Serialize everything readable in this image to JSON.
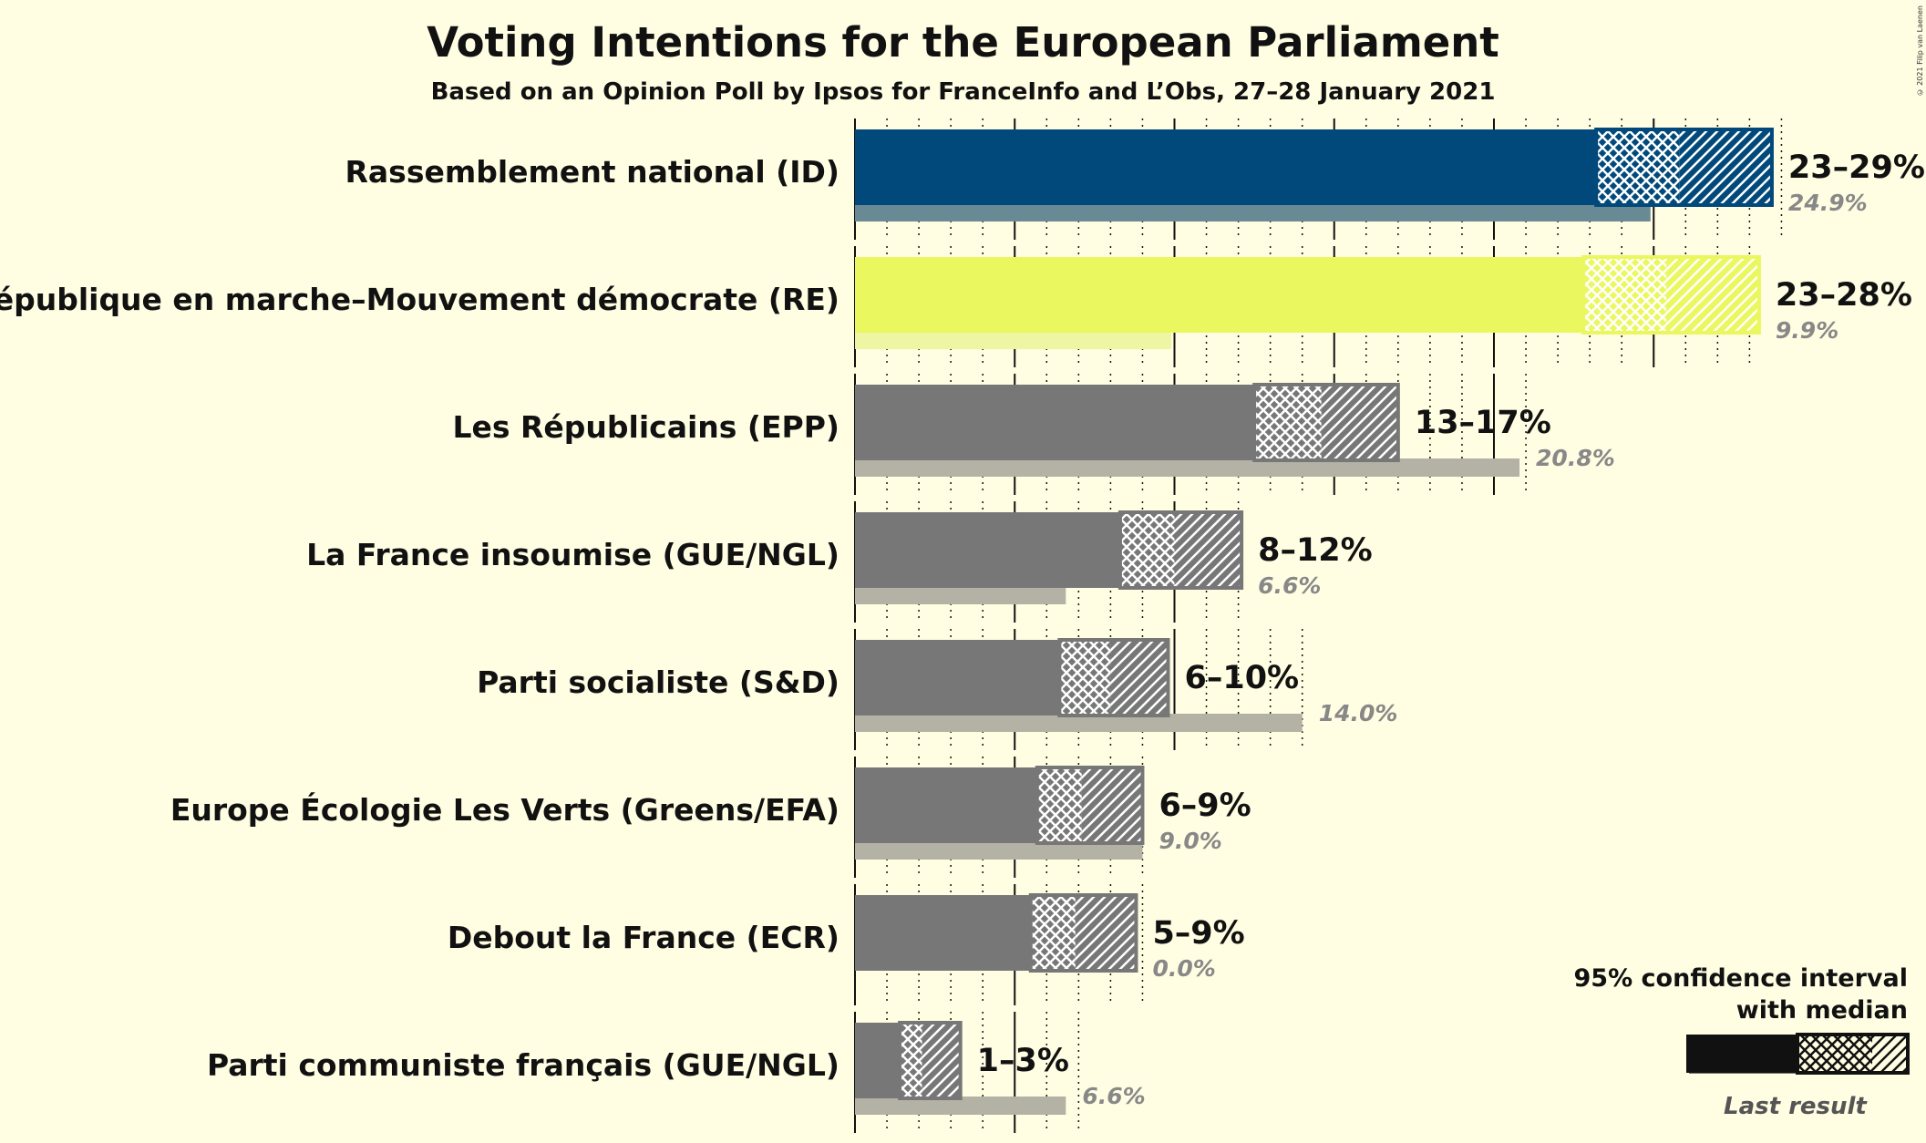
{
  "title": "Voting Intentions for the European Parliament",
  "subtitle": "Based on an Opinion Poll by Ipsos for FranceInfo and L’Obs, 27–28 January 2021",
  "copyright": "© 2021 Filip van Laenen",
  "legend": {
    "ci_label_line1": "95% confidence interval",
    "ci_label_line2": "with median",
    "last_result_label": "Last result"
  },
  "colors": {
    "background": "#fffde2",
    "rn": "#00497a",
    "re": "#eaf75f",
    "grey": "#777777",
    "last_result_rn": "#698a94",
    "last_result_re": "#eef6a4",
    "last_result_grey": "#b4b2a5"
  },
  "chart_data": {
    "type": "bar",
    "orientation": "horizontal",
    "title": "Voting Intentions for the European Parliament",
    "subtitle": "Based on an Opinion Poll by Ipsos for FranceInfo and L’Obs, 27–28 January 2021",
    "xlim": [
      0,
      30
    ],
    "major_gridlines": [
      5,
      10,
      15,
      20,
      25
    ],
    "minor_gridlines_every": 1,
    "series": [
      {
        "name": "95% confidence interval with median"
      },
      {
        "name": "Last result"
      }
    ],
    "parties": [
      {
        "name": "Rassemblement national (ID)",
        "range_label": "23–29%",
        "last_label": "24.9%",
        "ci_low": 23.2,
        "median": 25.8,
        "ci_high": 28.7,
        "last": 24.9,
        "color_key": "rn"
      },
      {
        "name": "La République en marche–Mouvement démocrate (RE)",
        "range_label": "23–28%",
        "last_label": "9.9%",
        "ci_low": 22.8,
        "median": 25.4,
        "ci_high": 28.3,
        "last": 9.9,
        "color_key": "re"
      },
      {
        "name": "Les Républicains (EPP)",
        "range_label": "13–17%",
        "last_label": "20.8%",
        "ci_low": 12.5,
        "median": 14.6,
        "ci_high": 17.0,
        "last": 20.8,
        "color_key": "grey"
      },
      {
        "name": "La France insoumise (GUE/NGL)",
        "range_label": "8–12%",
        "last_label": "6.6%",
        "ci_low": 8.3,
        "median": 10.0,
        "ci_high": 12.1,
        "last": 6.6,
        "color_key": "grey"
      },
      {
        "name": "Parti socialiste (S&D)",
        "range_label": "6–10%",
        "last_label": "14.0%",
        "ci_low": 6.4,
        "median": 8.0,
        "ci_high": 9.8,
        "last": 14.0,
        "color_key": "grey"
      },
      {
        "name": "Europe Écologie Les Verts (Greens/EFA)",
        "range_label": "6–9%",
        "last_label": "9.0%",
        "ci_low": 5.7,
        "median": 7.1,
        "ci_high": 9.0,
        "last": 9.0,
        "color_key": "grey"
      },
      {
        "name": "Debout la France (ECR)",
        "range_label": "5–9%",
        "last_label": "0.0%",
        "ci_low": 5.5,
        "median": 6.9,
        "ci_high": 8.8,
        "last": 0.0,
        "color_key": "grey"
      },
      {
        "name": "Parti communiste français (GUE/NGL)",
        "range_label": "1–3%",
        "last_label": "6.6%",
        "ci_low": 1.4,
        "median": 2.1,
        "ci_high": 3.3,
        "last": 6.6,
        "color_key": "grey"
      }
    ]
  }
}
